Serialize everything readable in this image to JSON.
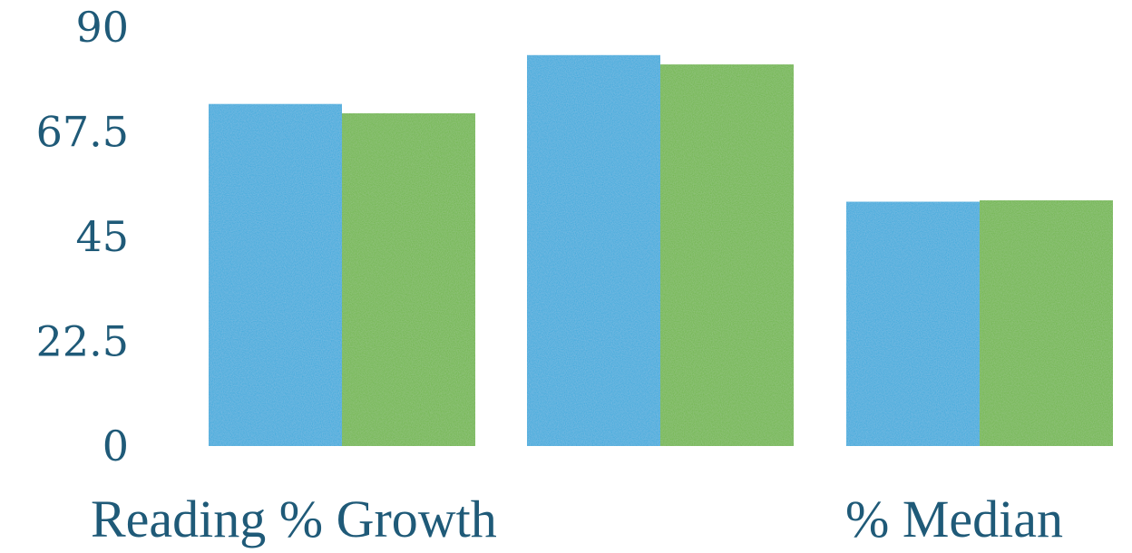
{
  "chart_data": {
    "type": "bar",
    "title": "",
    "xlabel": "",
    "ylabel": "",
    "ylim": [
      0,
      90
    ],
    "yticks": [
      "0",
      "22.5",
      "45",
      "67.5",
      "90"
    ],
    "categories": [
      "Reading % Growth",
      "",
      "% Median"
    ],
    "series": [
      {
        "color": "#33a9dc",
        "values": [
          73.5,
          84,
          52.5
        ]
      },
      {
        "color": "#6db544",
        "values": [
          71.5,
          82,
          52.8
        ]
      }
    ],
    "grid": false,
    "legend": "none"
  }
}
